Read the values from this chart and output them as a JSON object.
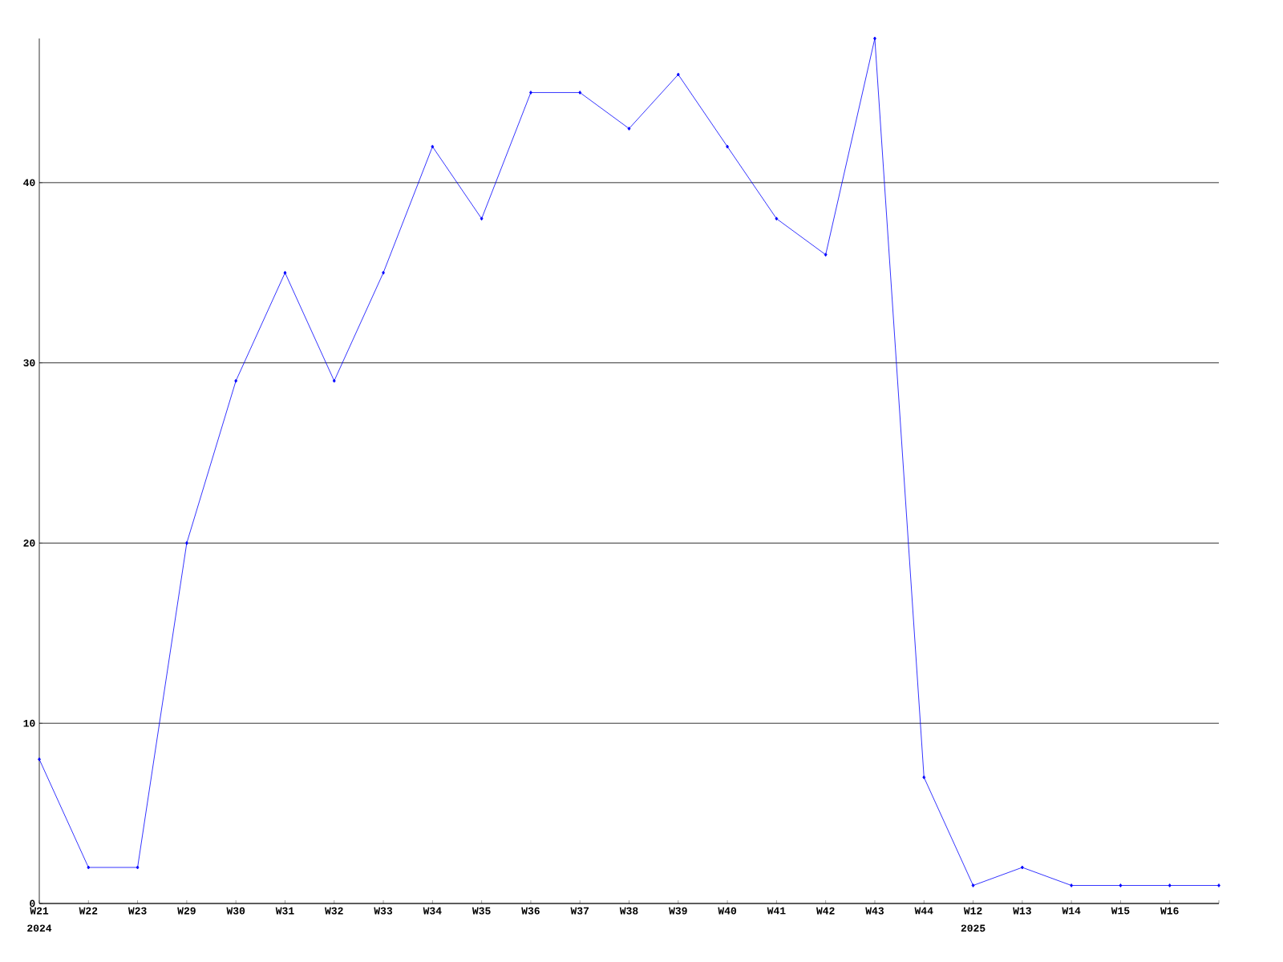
{
  "chart_data": {
    "type": "line",
    "categories": [
      "W21",
      "W22",
      "W23",
      "W29",
      "W30",
      "W31",
      "W32",
      "W33",
      "W34",
      "W35",
      "W36",
      "W37",
      "W38",
      "W39",
      "W40",
      "W41",
      "W42",
      "W43",
      "W44",
      "W12",
      "W13",
      "W14",
      "W15",
      "W16",
      null
    ],
    "values": [
      8,
      2,
      2,
      20,
      29,
      35,
      29,
      35,
      42,
      38,
      45,
      45,
      43,
      46,
      42,
      38,
      36,
      48,
      7,
      1,
      2,
      1,
      1,
      1,
      1
    ],
    "color": "#0000ff",
    "ylim": [
      0,
      48
    ],
    "yticks": [
      0,
      10,
      20,
      30,
      40
    ],
    "grid": "y",
    "marker": "diamond",
    "annotations": [
      "2024",
      "2025"
    ]
  }
}
